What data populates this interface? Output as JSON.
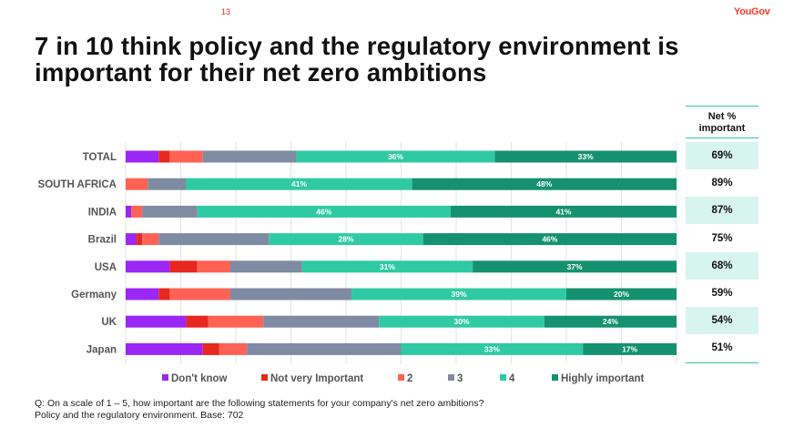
{
  "page": {
    "number": "13",
    "brand": "YouGov"
  },
  "title": "7 in 10 think policy and the regulatory environment is important for their net zero ambitions",
  "net_panel": {
    "header": "Net % important",
    "values": [
      "69%",
      "89%",
      "87%",
      "75%",
      "68%",
      "59%",
      "54%",
      "51%"
    ]
  },
  "footnote": {
    "line1": "Q: On a scale of 1 – 5, how important are the following statements for your company's net zero ambitions?",
    "line2": "Policy and the regulatory environment. Base: 702"
  },
  "chart_data": {
    "type": "bar",
    "orientation": "horizontal",
    "stacked": true,
    "title": "7 in 10 think policy and the regulatory environment is important for their net zero ambitions",
    "xlabel": "",
    "ylabel": "",
    "xlim": [
      0,
      100
    ],
    "grid": true,
    "legend_position": "bottom",
    "categories": [
      "TOTAL",
      "SOUTH AFRICA",
      "INDIA",
      "Brazil",
      "USA",
      "Germany",
      "UK",
      "Japan"
    ],
    "series": [
      {
        "name": "Don't know",
        "color": "#9b27f5",
        "values": [
          6,
          0,
          1,
          2,
          8,
          6,
          11,
          14
        ],
        "labeled": false
      },
      {
        "name": "Not very Important",
        "color": "#e8271f",
        "values": [
          2,
          0,
          0,
          1,
          5,
          2,
          4,
          3
        ],
        "labeled": false
      },
      {
        "name": "2",
        "color": "#ff6254",
        "values": [
          6,
          4,
          2,
          3,
          6,
          11,
          10,
          5
        ],
        "labeled": false
      },
      {
        "name": "3",
        "color": "#7f8ba3",
        "values": [
          17,
          7,
          10,
          20,
          13,
          22,
          21,
          28
        ],
        "labeled": false
      },
      {
        "name": "4",
        "color": "#2fcaa4",
        "values": [
          36,
          41,
          46,
          28,
          31,
          39,
          30,
          33
        ],
        "labeled": true
      },
      {
        "name": "Highly important",
        "color": "#159170",
        "values": [
          33,
          48,
          41,
          46,
          37,
          20,
          24,
          17
        ],
        "labeled": true
      }
    ],
    "net_important": [
      69,
      89,
      87,
      75,
      68,
      59,
      54,
      51
    ]
  }
}
